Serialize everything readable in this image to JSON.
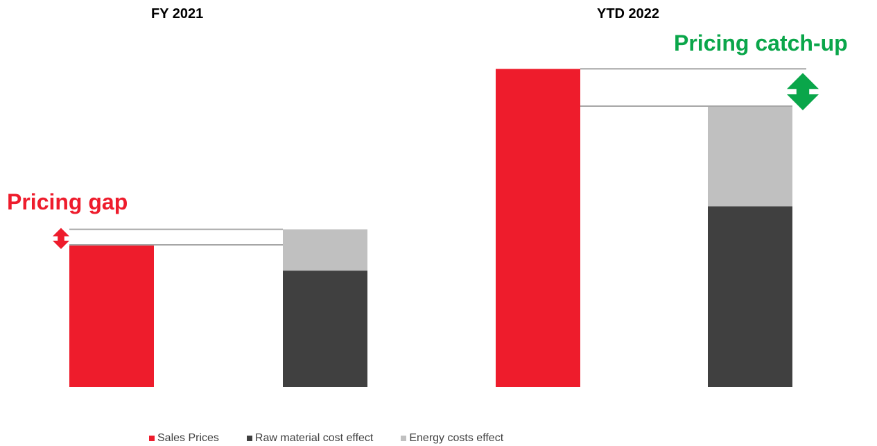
{
  "chart_data": {
    "type": "bar",
    "stacked": true,
    "categories": [
      "FY 2021",
      "YTD 2022"
    ],
    "panels": [
      {
        "title": "FY 2021",
        "sales_prices": 21,
        "cost_stack": {
          "raw_material": 17.2,
          "energy": 6.1
        },
        "annotation": {
          "label": "Pricing gap",
          "color": "#ee1c2c"
        }
      },
      {
        "title": "YTD 2022",
        "sales_prices": 47,
        "cost_stack": {
          "raw_material": 26.7,
          "energy": 14.8
        },
        "annotation": {
          "label": "Pricing catch-up",
          "color": "#0aa64a"
        }
      }
    ],
    "series": [
      {
        "name": "Sales Prices",
        "color": "#ee1c2c"
      },
      {
        "name": "Raw material cost effect",
        "color": "#404040"
      },
      {
        "name": "Energy costs effect",
        "color": "#c0c0c0"
      }
    ],
    "ylim": [
      0,
      50
    ],
    "grid": false,
    "legend_position": "bottom"
  }
}
